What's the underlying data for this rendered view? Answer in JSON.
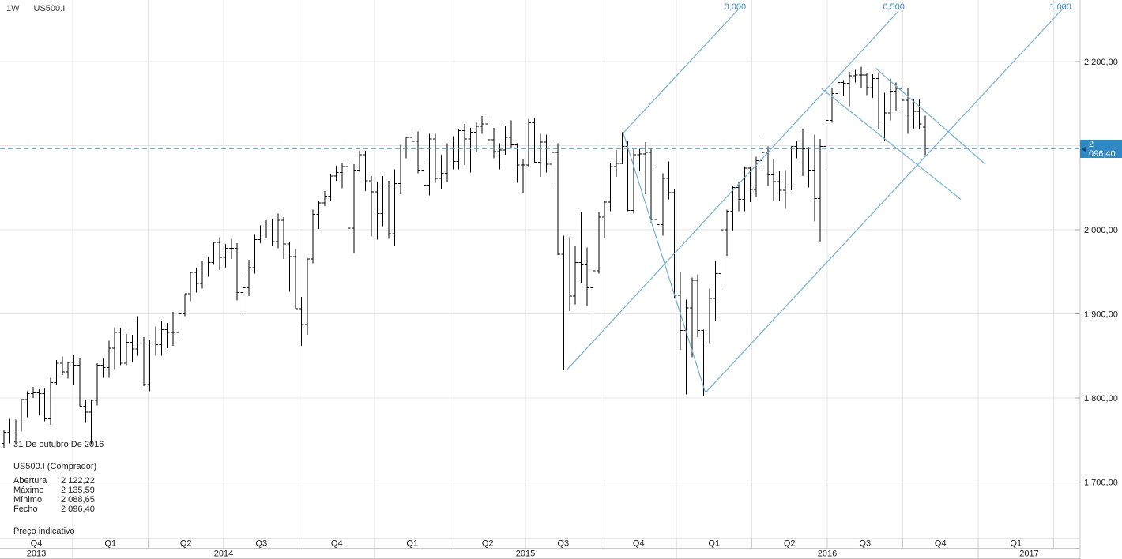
{
  "header": {
    "timeframe": "1W",
    "symbol": "US500.I"
  },
  "tooltip": {
    "date": "31 De outubro De 2016",
    "instrument": "US500.I (Comprador)",
    "rows": [
      {
        "label": "Abertura",
        "value": "2 122,22"
      },
      {
        "label": "Máximo",
        "value": "2 135,59"
      },
      {
        "label": "Mínimo",
        "value": "2 088,65"
      },
      {
        "label": "Fecho",
        "value": "2 096,40"
      }
    ],
    "note": "Preço indicativo"
  },
  "price_tag": {
    "value": "2 096,40"
  },
  "colors": {
    "bar": "#000000",
    "grid": "#e4e4e4",
    "axis_border": "#c9c9c9",
    "axis_text": "#1a1a1a",
    "trendline": "#74aed8",
    "fib_label": "#3f88bf",
    "dashed_line": "#4593c6",
    "tag_bg": "#2f89c5",
    "tag_text": "#ffffff"
  },
  "chart_data": {
    "type": "ohlc",
    "title": "US500.I weekly bar chart",
    "interval": "1W",
    "legend_position": "none",
    "grid": true,
    "axis_range_price": [
      1633,
      2273
    ],
    "dashed_line_price": 2096.4,
    "gridline_prices": [
      2200,
      2100,
      2000,
      1900,
      1800,
      1700
    ],
    "y_axis": [
      {
        "p": 2200,
        "label": "2 200,00"
      },
      {
        "p": 2000,
        "label": "2 000,00"
      },
      {
        "p": 1900,
        "label": "1 900,00"
      },
      {
        "p": 1800,
        "label": "1 800,00"
      },
      {
        "p": 1700,
        "label": "1 700,00"
      }
    ],
    "x_axis": {
      "quarter_labels": [
        "Q4",
        "Q1",
        "Q2",
        "Q3",
        "Q4",
        "Q1",
        "Q2",
        "Q3",
        "Q4",
        "Q1",
        "Q2",
        "Q3",
        "Q4",
        "Q1"
      ],
      "year_labels": [
        "2013",
        "2014",
        "2015",
        "2016",
        "2017"
      ]
    },
    "bars": [
      [
        1746,
        1762,
        1740,
        1759
      ],
      [
        1759,
        1775,
        1746,
        1762
      ],
      [
        1762,
        1774,
        1746,
        1771
      ],
      [
        1771,
        1798,
        1760,
        1798
      ],
      [
        1798,
        1808,
        1777,
        1805
      ],
      [
        1805,
        1813,
        1800,
        1806
      ],
      [
        1806,
        1810,
        1779,
        1805
      ],
      [
        1805,
        1811,
        1772,
        1775
      ],
      [
        1775,
        1824,
        1768,
        1818
      ],
      [
        1818,
        1845,
        1816,
        1841
      ],
      [
        1841,
        1849,
        1827,
        1831
      ],
      [
        1831,
        1843,
        1823,
        1842
      ],
      [
        1842,
        1851,
        1815,
        1839
      ],
      [
        1839,
        1847,
        1790,
        1790
      ],
      [
        1790,
        1798,
        1770,
        1783
      ],
      [
        1783,
        1798,
        1745,
        1797
      ],
      [
        1797,
        1841,
        1791,
        1839
      ],
      [
        1839,
        1847,
        1824,
        1836
      ],
      [
        1836,
        1868,
        1824,
        1859
      ],
      [
        1859,
        1884,
        1834,
        1878
      ],
      [
        1878,
        1883,
        1839,
        1841
      ],
      [
        1841,
        1876,
        1839,
        1866
      ],
      [
        1866,
        1875,
        1842,
        1858
      ],
      [
        1858,
        1897,
        1850,
        1865
      ],
      [
        1865,
        1872,
        1814,
        1816
      ],
      [
        1816,
        1869,
        1808,
        1865
      ],
      [
        1865,
        1885,
        1850,
        1863
      ],
      [
        1863,
        1891,
        1850,
        1881
      ],
      [
        1881,
        1889,
        1859,
        1878
      ],
      [
        1878,
        1902,
        1862,
        1878
      ],
      [
        1878,
        1901,
        1868,
        1900
      ],
      [
        1900,
        1924,
        1897,
        1924
      ],
      [
        1924,
        1949,
        1915,
        1949
      ],
      [
        1949,
        1955,
        1925,
        1936
      ],
      [
        1936,
        1963,
        1930,
        1963
      ],
      [
        1963,
        1968,
        1944,
        1961
      ],
      [
        1961,
        1985,
        1958,
        1985
      ],
      [
        1985,
        1991,
        1952,
        1967
      ],
      [
        1967,
        1983,
        1955,
        1978
      ],
      [
        1978,
        1989,
        1965,
        1978
      ],
      [
        1978,
        1984,
        1916,
        1925
      ],
      [
        1925,
        1944,
        1904,
        1931
      ],
      [
        1931,
        1964,
        1921,
        1955
      ],
      [
        1955,
        1994,
        1948,
        1988
      ],
      [
        1988,
        2005,
        1984,
        2003
      ],
      [
        2003,
        2011,
        1990,
        2008
      ],
      [
        2008,
        2012,
        1980,
        1986
      ],
      [
        1986,
        2019,
        1978,
        2011
      ],
      [
        2011,
        2015,
        1965,
        1983
      ],
      [
        1983,
        1986,
        1926,
        1968
      ],
      [
        1968,
        1977,
        1906,
        1906
      ],
      [
        1906,
        1920,
        1862,
        1887
      ],
      [
        1887,
        1965,
        1875,
        1965
      ],
      [
        1965,
        2024,
        1960,
        2018
      ],
      [
        2018,
        2034,
        2001,
        2032
      ],
      [
        2032,
        2046,
        2028,
        2040
      ],
      [
        2040,
        2066,
        2034,
        2064
      ],
      [
        2064,
        2076,
        2058,
        2068
      ],
      [
        2068,
        2079,
        2049,
        2075
      ],
      [
        2075,
        2080,
        2002,
        2002
      ],
      [
        2002,
        2078,
        1972,
        2071
      ],
      [
        2071,
        2094,
        2069,
        2089
      ],
      [
        2089,
        2094,
        2046,
        2058
      ],
      [
        2058,
        2064,
        1992,
        2045
      ],
      [
        2045,
        2057,
        1988,
        2019
      ],
      [
        2019,
        2064,
        2004,
        2052
      ],
      [
        2052,
        2058,
        1989,
        1995
      ],
      [
        1995,
        2072,
        1980,
        2055
      ],
      [
        2055,
        2101,
        2042,
        2097
      ],
      [
        2097,
        2110,
        2085,
        2110
      ],
      [
        2110,
        2119,
        2103,
        2105
      ],
      [
        2105,
        2117,
        2067,
        2071
      ],
      [
        2071,
        2082,
        2039,
        2053
      ],
      [
        2053,
        2114,
        2041,
        2108
      ],
      [
        2108,
        2114,
        2056,
        2061
      ],
      [
        2061,
        2089,
        2048,
        2067
      ],
      [
        2067,
        2103,
        2057,
        2102
      ],
      [
        2102,
        2111,
        2072,
        2081
      ],
      [
        2081,
        2120,
        2072,
        2118
      ],
      [
        2118,
        2126,
        2077,
        2108
      ],
      [
        2108,
        2121,
        2068,
        2116
      ],
      [
        2116,
        2127,
        2092,
        2123
      ],
      [
        2123,
        2135,
        2114,
        2126
      ],
      [
        2126,
        2132,
        2099,
        2107
      ],
      [
        2107,
        2121,
        2085,
        2093
      ],
      [
        2093,
        2103,
        2072,
        2095
      ],
      [
        2095,
        2124,
        2089,
        2110
      ],
      [
        2110,
        2130,
        2096,
        2101
      ],
      [
        2101,
        2103,
        2056,
        2077
      ],
      [
        2077,
        2084,
        2044,
        2077
      ],
      [
        2077,
        2132,
        2074,
        2127
      ],
      [
        2127,
        2133,
        2079,
        2080
      ],
      [
        2080,
        2114,
        2063,
        2104
      ],
      [
        2104,
        2113,
        2068,
        2078
      ],
      [
        2078,
        2105,
        2052,
        2092
      ],
      [
        2092,
        2103,
        1970,
        1971
      ],
      [
        1971,
        1993,
        1833,
        1990
      ],
      [
        1990,
        1991,
        1903,
        1921
      ],
      [
        1921,
        1980,
        1911,
        1961
      ],
      [
        1961,
        2021,
        1937,
        1958
      ],
      [
        1958,
        1979,
        1909,
        1931
      ],
      [
        1931,
        1952,
        1872,
        1951
      ],
      [
        1951,
        2021,
        1948,
        2015
      ],
      [
        2015,
        2034,
        1990,
        2033
      ],
      [
        2033,
        2079,
        2022,
        2075
      ],
      [
        2075,
        2095,
        2063,
        2079
      ],
      [
        2079,
        2116,
        2078,
        2099
      ],
      [
        2099,
        2105,
        2022,
        2023
      ],
      [
        2023,
        2097,
        2019,
        2089
      ],
      [
        2089,
        2096,
        2070,
        2090
      ],
      [
        2090,
        2104,
        2042,
        2092
      ],
      [
        2092,
        2096,
        2008,
        2012
      ],
      [
        2012,
        2076,
        1993,
        2006
      ],
      [
        2006,
        2067,
        1993,
        2061
      ],
      [
        2061,
        2081,
        2036,
        2044
      ],
      [
        2044,
        2048,
        1918,
        1922
      ],
      [
        1922,
        1950,
        1857,
        1880
      ],
      [
        1880,
        1917,
        1804,
        1907
      ],
      [
        1907,
        1943,
        1848,
        1940
      ],
      [
        1940,
        1947,
        1872,
        1880
      ],
      [
        1880,
        1881,
        1802,
        1865
      ],
      [
        1865,
        1930,
        1864,
        1918
      ],
      [
        1918,
        1963,
        1891,
        1948
      ],
      [
        1948,
        2001,
        1931,
        2000
      ],
      [
        2000,
        2024,
        1969,
        2022
      ],
      [
        2022,
        2052,
        1999,
        2050
      ],
      [
        2050,
        2057,
        2022,
        2036
      ],
      [
        2036,
        2075,
        2022,
        2073
      ],
      [
        2073,
        2075,
        2033,
        2048
      ],
      [
        2048,
        2087,
        2039,
        2082
      ],
      [
        2082,
        2111,
        2077,
        2092
      ],
      [
        2092,
        2099,
        2052,
        2065
      ],
      [
        2065,
        2084,
        2034,
        2057
      ],
      [
        2057,
        2070,
        2034,
        2047
      ],
      [
        2047,
        2071,
        2025,
        2052
      ],
      [
        2052,
        2099,
        2047,
        2099
      ],
      [
        2099,
        2105,
        2085,
        2096
      ],
      [
        2096,
        2120,
        2064,
        2096
      ],
      [
        2096,
        2098,
        2050,
        2071
      ],
      [
        2071,
        2113,
        2010,
        2037
      ],
      [
        2037,
        2108,
        1985,
        2099
      ],
      [
        2099,
        2131,
        2074,
        2130
      ],
      [
        2130,
        2169,
        2127,
        2162
      ],
      [
        2162,
        2177,
        2150,
        2175
      ],
      [
        2175,
        2178,
        2159,
        2174
      ],
      [
        2174,
        2188,
        2147,
        2183
      ],
      [
        2183,
        2190,
        2175,
        2184
      ],
      [
        2184,
        2194,
        2168,
        2184
      ],
      [
        2184,
        2187,
        2160,
        2169
      ],
      [
        2169,
        2185,
        2157,
        2180
      ],
      [
        2180,
        2186,
        2119,
        2128
      ],
      [
        2128,
        2163,
        2105,
        2139
      ],
      [
        2139,
        2180,
        2130,
        2165
      ],
      [
        2165,
        2175,
        2141,
        2168
      ],
      [
        2168,
        2178,
        2140,
        2154
      ],
      [
        2154,
        2169,
        2114,
        2133
      ],
      [
        2133,
        2155,
        2120,
        2141
      ],
      [
        2141,
        2155,
        2119,
        2126
      ],
      [
        2122.22,
        2135.59,
        2088.65,
        2096.4
      ]
    ],
    "annotations": {
      "segments": [
        {
          "name": "fib-channel-line-0500",
          "b1": 96.5,
          "p1": 1833,
          "b2": 153.4,
          "p2": 2260
        },
        {
          "name": "fib-channel-line-0000",
          "b1": 106.2,
          "p1": 2115,
          "b2": 126.2,
          "p2": 2264
        },
        {
          "name": "fib-channel-connector",
          "b1": 106.2,
          "p1": 2115,
          "b2": 120.3,
          "p2": 1806
        },
        {
          "name": "fib-channel-line-1000",
          "b1": 120.3,
          "p1": 1806,
          "b2": 182.0,
          "p2": 2266
        },
        {
          "name": "descending-channel-upper",
          "b1": 149.5,
          "p1": 2192,
          "b2": 168.3,
          "p2": 2078
        },
        {
          "name": "descending-channel-lower",
          "b1": 140.2,
          "p1": 2168,
          "b2": 164.1,
          "p2": 2036
        }
      ],
      "fib_labels": [
        {
          "text": "0,000",
          "b": 126.2,
          "p": 2264
        },
        {
          "text": "0,500",
          "b": 153.4,
          "p": 2260
        },
        {
          "text": "1,000",
          "b": 182.0,
          "p": 2266
        }
      ]
    }
  }
}
